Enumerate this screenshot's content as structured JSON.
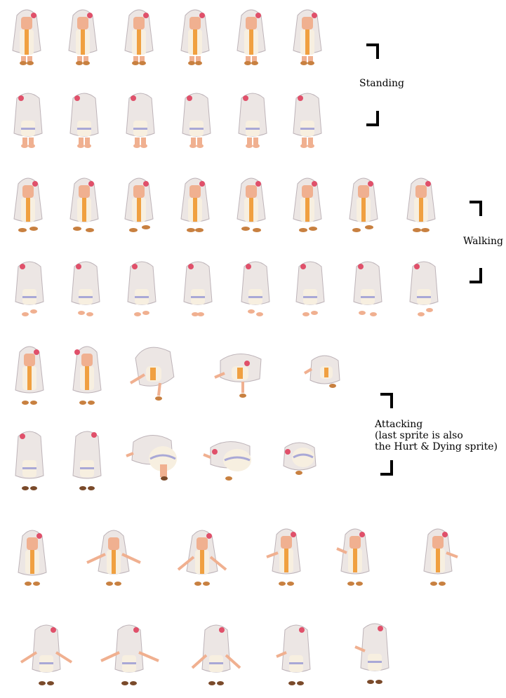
{
  "labels": {
    "standing": "Standing",
    "walking": "Walking",
    "attacking_line1": "Attacking",
    "attacking_line2": "(last sprite is also",
    "attacking_line3": "the Hurt & Dying sprite)"
  },
  "colors": {
    "hair": "#ece6e4",
    "hair_shade": "#bdb3b8",
    "skin": "#f0b090",
    "dress": "#f7efe0",
    "dress_stripe": "#a9a8d6",
    "ribbon": "#f0a040",
    "shoes": "#c88040",
    "flower": "#e0506a",
    "bracket": "#000000"
  }
}
